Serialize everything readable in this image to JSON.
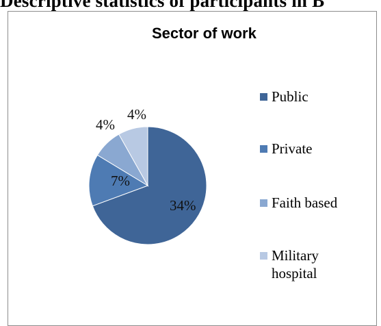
{
  "document": {
    "heading": "Descriptive statistics of participants in B"
  },
  "chart_data": {
    "type": "pie",
    "title": "Sector of work",
    "categories": [
      "Public",
      "Private",
      "Faith based",
      "Military\nhospital"
    ],
    "values": [
      34,
      7,
      4,
      4
    ],
    "data_labels": [
      "34%",
      "7%",
      "4%",
      "4%"
    ],
    "colors": [
      "#3f6597",
      "#4e7bb3",
      "#8aa8d1",
      "#b8c9e3"
    ],
    "legend_position": "right"
  }
}
